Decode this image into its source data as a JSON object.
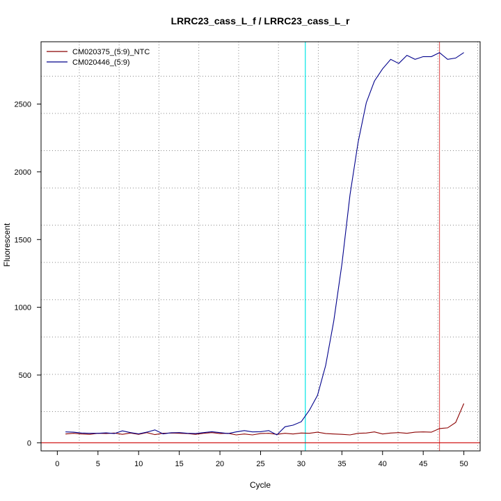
{
  "chart_data": {
    "type": "line",
    "title": "LRRC23_cass_L_f / LRRC23_cass_L_r",
    "xlabel": "Cycle",
    "ylabel": "Fluorescent",
    "xlim": [
      -2,
      52
    ],
    "ylim": [
      -60,
      2960
    ],
    "x_ticks": [
      0,
      5,
      10,
      15,
      20,
      25,
      30,
      35,
      40,
      45,
      50
    ],
    "y_ticks": [
      0,
      500,
      1000,
      1500,
      2000,
      2500
    ],
    "grid": true,
    "grid_x": [
      2.7,
      7.6,
      12.5,
      17.4,
      22.3,
      27.2,
      32.1,
      37.0,
      41.9,
      46.8,
      51.7
    ],
    "grid_y": [
      230,
      505,
      781,
      1056,
      1331,
      1606,
      1881,
      2156,
      2431,
      2706
    ],
    "legend": "top-left",
    "threshold_y": 0,
    "threshold_color": "#cc0000",
    "vlines": [
      {
        "x": 30.5,
        "color": "#00e5e5"
      },
      {
        "x": 47.0,
        "color": "#e06060"
      }
    ],
    "x": [
      1,
      2,
      3,
      4,
      5,
      6,
      7,
      8,
      9,
      10,
      11,
      12,
      13,
      14,
      15,
      16,
      17,
      18,
      19,
      20,
      21,
      22,
      23,
      24,
      25,
      26,
      27,
      28,
      29,
      30,
      31,
      32,
      33,
      34,
      35,
      36,
      37,
      38,
      39,
      40,
      41,
      42,
      43,
      44,
      45,
      46,
      47,
      48,
      49,
      50
    ],
    "series": [
      {
        "name": "CM020375_(5:9)_NTC",
        "color": "#8b0000",
        "values": [
          65,
          70,
          65,
          62,
          70,
          68,
          72,
          62,
          72,
          62,
          75,
          60,
          70,
          72,
          70,
          68,
          62,
          70,
          75,
          68,
          70,
          58,
          65,
          58,
          68,
          70,
          62,
          70,
          65,
          72,
          70,
          78,
          68,
          65,
          62,
          58,
          70,
          72,
          80,
          65,
          72,
          75,
          70,
          78,
          80,
          78,
          105,
          110,
          150,
          290
        ]
      },
      {
        "name": "CM020446_(5:9)",
        "color": "#00008b",
        "values": [
          80,
          78,
          72,
          70,
          70,
          73,
          68,
          88,
          75,
          66,
          78,
          95,
          66,
          74,
          75,
          70,
          68,
          75,
          82,
          75,
          68,
          80,
          90,
          80,
          82,
          90,
          58,
          118,
          130,
          155,
          240,
          350,
          570,
          900,
          1320,
          1830,
          2220,
          2510,
          2670,
          2760,
          2830,
          2800,
          2860,
          2830,
          2850,
          2850,
          2880,
          2830,
          2840,
          2880
        ]
      }
    ]
  }
}
